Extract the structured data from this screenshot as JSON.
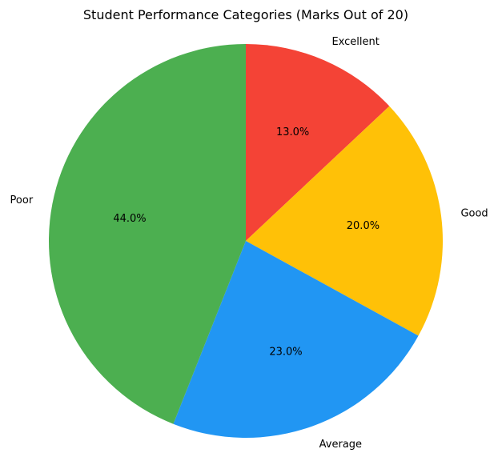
{
  "chart_data": {
    "type": "pie",
    "title": "Student Performance Categories (Marks Out of 20)",
    "labels": [
      "Excellent",
      "Good",
      "Average",
      "Poor"
    ],
    "values": [
      13.0,
      20.0,
      23.0,
      44.0
    ],
    "percent_labels": [
      "13.0%",
      "20.0%",
      "23.0%",
      "44.0%"
    ],
    "colors": [
      "#f44336",
      "#ffc107",
      "#2196f3",
      "#4caf50"
    ],
    "start_angle_deg": 90,
    "direction": "clockwise"
  }
}
